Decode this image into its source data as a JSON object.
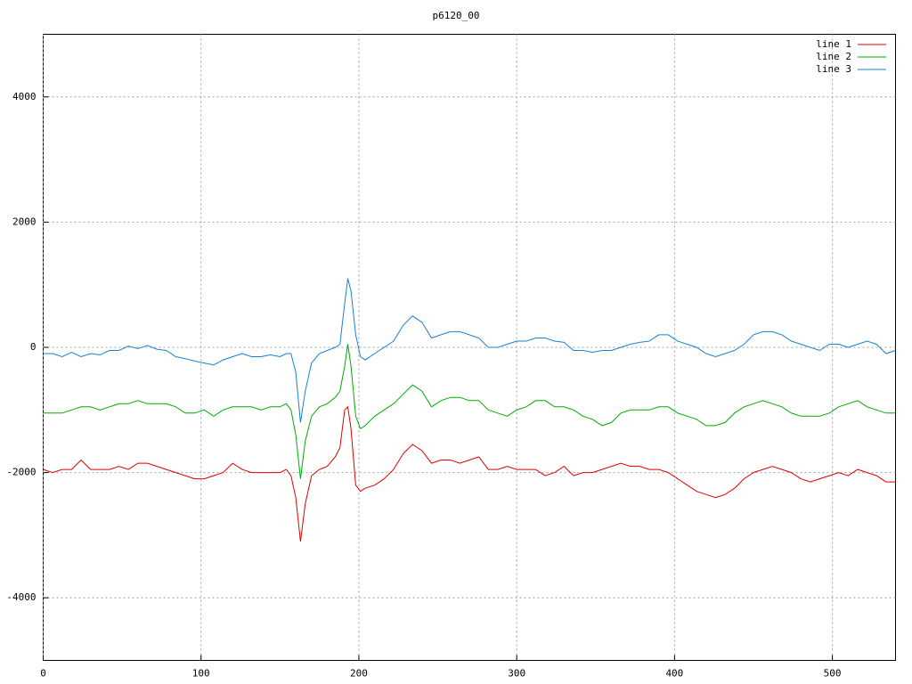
{
  "chart_data": {
    "type": "line",
    "title": "p6120_00",
    "x": [
      0,
      6,
      12,
      18,
      24,
      30,
      36,
      42,
      48,
      54,
      60,
      66,
      72,
      78,
      84,
      90,
      96,
      102,
      108,
      114,
      120,
      126,
      132,
      138,
      144,
      150,
      154,
      157,
      160,
      163,
      166,
      170,
      175,
      180,
      185,
      188,
      191,
      193,
      195,
      198,
      201,
      204,
      210,
      216,
      222,
      228,
      234,
      240,
      246,
      252,
      258,
      264,
      270,
      276,
      282,
      288,
      294,
      300,
      306,
      312,
      318,
      324,
      330,
      336,
      342,
      348,
      354,
      360,
      366,
      372,
      378,
      384,
      390,
      396,
      402,
      408,
      414,
      420,
      426,
      432,
      438,
      444,
      450,
      456,
      462,
      468,
      474,
      480,
      486,
      492,
      498,
      504,
      510,
      516,
      522,
      528,
      534,
      540
    ],
    "series": [
      {
        "name": "line 1",
        "color": "#dd0000",
        "values": [
          -1950,
          -2000,
          -1950,
          -1950,
          -1800,
          -1950,
          -1950,
          -1950,
          -1900,
          -1950,
          -1850,
          -1850,
          -1900,
          -1950,
          -2000,
          -2050,
          -2100,
          -2100,
          -2050,
          -2000,
          -1850,
          -1950,
          -2000,
          -2000,
          -2000,
          -2000,
          -1950,
          -2050,
          -2400,
          -3100,
          -2500,
          -2050,
          -1950,
          -1900,
          -1750,
          -1600,
          -1000,
          -950,
          -1300,
          -2200,
          -2300,
          -2250,
          -2200,
          -2100,
          -1950,
          -1700,
          -1550,
          -1650,
          -1850,
          -1800,
          -1800,
          -1850,
          -1800,
          -1750,
          -1950,
          -1950,
          -1900,
          -1950,
          -1950,
          -1950,
          -2050,
          -2000,
          -1900,
          -2050,
          -2000,
          -2000,
          -1950,
          -1900,
          -1850,
          -1900,
          -1900,
          -1950,
          -1950,
          -2000,
          -2100,
          -2200,
          -2300,
          -2350,
          -2400,
          -2350,
          -2250,
          -2100,
          -2000,
          -1950,
          -1900,
          -1950,
          -2000,
          -2100,
          -2150,
          -2100,
          -2050,
          -2000,
          -2050,
          -1950,
          -2000,
          -2050,
          -2150,
          -2150
        ]
      },
      {
        "name": "line 2",
        "color": "#00aa00",
        "values": [
          -1050,
          -1050,
          -1050,
          -1000,
          -950,
          -950,
          -1000,
          -950,
          -900,
          -900,
          -850,
          -900,
          -900,
          -900,
          -950,
          -1050,
          -1050,
          -1000,
          -1100,
          -1000,
          -950,
          -950,
          -950,
          -1000,
          -950,
          -950,
          -900,
          -1000,
          -1400,
          -2100,
          -1500,
          -1100,
          -950,
          -900,
          -800,
          -700,
          -300,
          50,
          -300,
          -1100,
          -1300,
          -1250,
          -1100,
          -1000,
          -900,
          -750,
          -600,
          -700,
          -950,
          -850,
          -800,
          -800,
          -850,
          -850,
          -1000,
          -1050,
          -1100,
          -1000,
          -950,
          -850,
          -850,
          -950,
          -950,
          -1000,
          -1100,
          -1150,
          -1250,
          -1200,
          -1050,
          -1000,
          -1000,
          -1000,
          -950,
          -950,
          -1050,
          -1100,
          -1150,
          -1250,
          -1250,
          -1200,
          -1050,
          -950,
          -900,
          -850,
          -900,
          -950,
          -1050,
          -1100,
          -1100,
          -1100,
          -1050,
          -950,
          -900,
          -850,
          -950,
          -1000,
          -1050,
          -1050
        ]
      },
      {
        "name": "line 3",
        "color": "#1a80d0",
        "values": [
          -100,
          -100,
          -150,
          -80,
          -150,
          -100,
          -120,
          -50,
          -50,
          20,
          -20,
          30,
          -30,
          -50,
          -150,
          -180,
          -220,
          -250,
          -280,
          -200,
          -150,
          -100,
          -150,
          -150,
          -120,
          -150,
          -100,
          -100,
          -400,
          -1200,
          -700,
          -250,
          -100,
          -50,
          0,
          50,
          700,
          1100,
          900,
          200,
          -150,
          -200,
          -100,
          0,
          100,
          350,
          500,
          400,
          150,
          200,
          250,
          250,
          200,
          150,
          0,
          0,
          50,
          100,
          100,
          150,
          150,
          100,
          80,
          -50,
          -50,
          -80,
          -50,
          -50,
          0,
          50,
          80,
          100,
          200,
          200,
          100,
          50,
          0,
          -100,
          -150,
          -100,
          -50,
          50,
          200,
          250,
          250,
          200,
          100,
          50,
          0,
          -50,
          50,
          50,
          0,
          50,
          100,
          50,
          -100,
          -50
        ]
      }
    ],
    "xlim": [
      0,
      540
    ],
    "ylim": [
      -5000,
      5000
    ],
    "xticks": [
      0,
      100,
      200,
      300,
      400,
      500
    ],
    "yticks": [
      -4000,
      -2000,
      0,
      2000,
      4000
    ],
    "grid": true,
    "legend": "top-right"
  }
}
